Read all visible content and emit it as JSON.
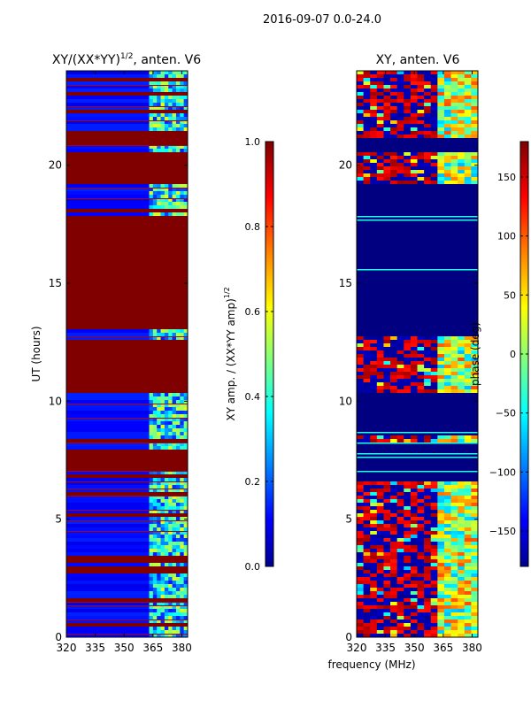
{
  "figure": {
    "suptitle": "2016-09-07 0.0-24.0"
  },
  "chart_data": [
    {
      "type": "heatmap",
      "title_main": "XY/(XX*YY)",
      "title_sup": "1/2",
      "title_rest": ", anten. V6",
      "ylabel": "UT (hours)",
      "xlabel": "",
      "xlim": [
        320,
        383
      ],
      "ylim": [
        0,
        24
      ],
      "xticks": [
        320,
        335,
        350,
        365,
        380
      ],
      "yticks": [
        0,
        5,
        10,
        15,
        20
      ],
      "colorbar": {
        "label_main": "XY amp. / (XX*YY amp)",
        "label_sup": "1/2",
        "range": [
          0.0,
          1.0
        ],
        "ticks": [
          "0.0",
          "0.2",
          "0.4",
          "0.6",
          "0.8",
          "1.0"
        ],
        "tick_values": [
          0.0,
          0.2,
          0.4,
          0.6,
          0.8,
          1.0
        ],
        "colormap": "jet"
      },
      "saturated_bands_hours": [
        [
          0.45,
          0.6
        ],
        [
          1.55,
          1.7
        ],
        [
          2.65,
          2.95
        ],
        [
          3.2,
          3.45
        ],
        [
          4.3,
          4.4
        ],
        [
          5.1,
          5.2
        ],
        [
          6.05,
          6.2
        ],
        [
          6.7,
          6.85
        ],
        [
          7.0,
          8.0
        ],
        [
          8.25,
          8.4
        ],
        [
          10.3,
          12.65
        ],
        [
          13.0,
          17.8
        ],
        [
          18.0,
          18.15
        ],
        [
          19.25,
          20.55
        ],
        [
          20.85,
          21.45
        ],
        [
          22.2,
          22.35
        ],
        [
          23.0,
          23.15
        ],
        [
          23.55,
          23.7
        ]
      ],
      "bright_channel_band_mhz": [
        363,
        382
      ],
      "background_value": 0.1,
      "flag_value": 1.0
    },
    {
      "type": "heatmap",
      "title_main": "XY, anten. V6",
      "ylabel": "",
      "xlabel": "frequency (MHz)",
      "xlim": [
        320,
        383
      ],
      "ylim": [
        0,
        24
      ],
      "xticks": [
        320,
        335,
        350,
        365,
        380
      ],
      "yticks": [
        0,
        5,
        10,
        15,
        20
      ],
      "colorbar": {
        "label_main": "phase (deg)",
        "range": [
          -180,
          180
        ],
        "ticks": [
          "−150",
          "−100",
          "−50",
          "0",
          "50",
          "100",
          "150"
        ],
        "tick_values": [
          -150,
          -100,
          -50,
          0,
          50,
          100,
          150
        ],
        "colormap": "jet"
      },
      "phase_bands_hours": [
        [
          0.0,
          6.6
        ],
        [
          8.3,
          8.6
        ],
        [
          10.3,
          12.7
        ],
        [
          19.2,
          20.6
        ],
        [
          21.2,
          24.0
        ]
      ],
      "flagged_region_hours": [
        [
          6.6,
          19.2
        ]
      ],
      "flag_value_deg": -180
    }
  ],
  "colors": {
    "jet_dark_blue": "#00008f",
    "jet_blue": "#0000ff",
    "jet_cyan": "#00ffff",
    "jet_yellow": "#ffff00",
    "jet_red": "#ff0000",
    "jet_dark_red": "#800000"
  }
}
